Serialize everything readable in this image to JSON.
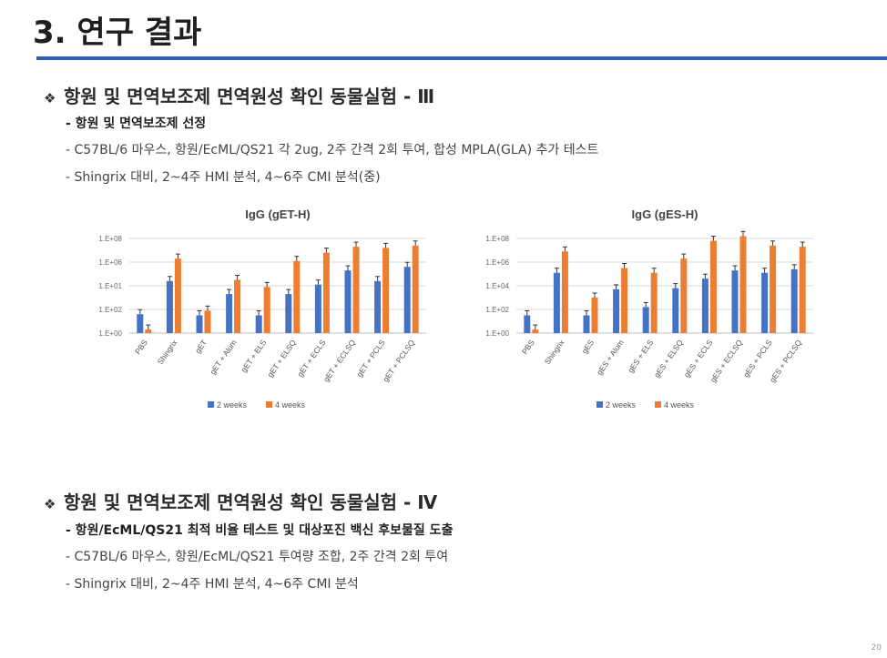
{
  "title": "3. 연구 결과",
  "section1": {
    "bullet": "❖",
    "heading": "항원 및 면역보조제 면역원성 확인 동물실험 - Ⅲ",
    "items": [
      "- 항원 및 면역보조제 선정",
      "- C57BL/6 마우스, 항원/EcML/QS21 각 2ug, 2주 간격 2회 투여, 합성 MPLA(GLA) 추가 테스트",
      "- Shingrix 대비, 2~4주 HMI 분석, 4~6주 CMI 분석(중)"
    ]
  },
  "section2": {
    "bullet": "❖",
    "heading": "항원 및 면역보조제 면역원성 확인 동물실험 - Ⅳ",
    "items": [
      "- 항원/EcML/QS21 최적 비율 테스트 및 대상포진 백신 후보물질 도출",
      "- C57BL/6 마우스, 항원/EcML/QS21 투여량 조합, 2주 간격 2회 투여",
      "- Shingrix 대비, 2~4주 HMI 분석, 4~6주 CMI 분석"
    ]
  },
  "page_number": "20",
  "chart_data": [
    {
      "type": "bar",
      "title": "IgG (gET-H)",
      "categories": [
        "PBS",
        "Shingrix",
        "gET",
        "gET + Alum",
        "gET + ELS",
        "gET + ELSQ",
        "gET + ECLS",
        "gET + ECLSQ",
        "gET + PCLS",
        "gET + PCLSQ"
      ],
      "y_tick_labels": [
        "1.E+00",
        "1.E+02",
        "1.E+01",
        "1.E+06",
        "1.E+08"
      ],
      "y_scale": "log",
      "legend_position": "bottom",
      "series": [
        {
          "name": "2 weeks",
          "color": "#4472c4",
          "values": [
            1.6,
            4.4,
            1.5,
            3.3,
            1.5,
            3.3,
            4.1,
            5.3,
            4.4,
            5.6
          ]
        },
        {
          "name": "4 weeks",
          "color": "#ed7d31",
          "values": [
            0.3,
            6.3,
            1.9,
            4.5,
            3.9,
            6.1,
            6.8,
            7.3,
            7.2,
            7.4
          ]
        }
      ]
    },
    {
      "type": "bar",
      "title": "IgG (gES-H)",
      "categories": [
        "PBS",
        "Shingrix",
        "gES",
        "gES + Alum",
        "gES + ELS",
        "gES + ELSQ",
        "gES + ECLS",
        "gES + ECLSQ",
        "gES + PCLS",
        "gES + PCLSQ"
      ],
      "y_tick_labels": [
        "1.E+00",
        "1.E+02",
        "1.E+04",
        "1.E+06",
        "1.E+08"
      ],
      "y_scale": "log",
      "legend_position": "bottom",
      "series": [
        {
          "name": "2 weeks",
          "color": "#4472c4",
          "values": [
            1.5,
            5.1,
            1.5,
            3.7,
            2.2,
            3.8,
            4.6,
            5.3,
            5.1,
            5.4
          ]
        },
        {
          "name": "4 weeks",
          "color": "#ed7d31",
          "values": [
            0.3,
            6.9,
            3.0,
            5.5,
            5.1,
            6.3,
            7.8,
            8.2,
            7.4,
            7.3
          ]
        }
      ]
    }
  ]
}
